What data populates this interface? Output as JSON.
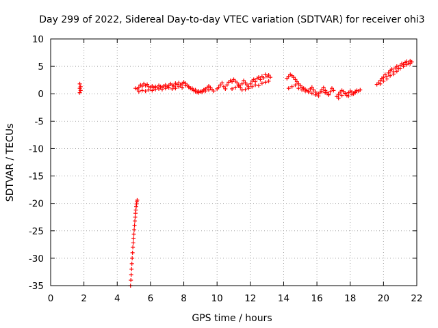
{
  "chart_data": {
    "type": "scatter",
    "title": "Day 299 of 2022, Sidereal Day-to-day VTEC variation (SDTVAR) for receiver ohi3",
    "xlabel": "GPS time / hours",
    "ylabel": "SDTVAR / TECUs",
    "xlim": [
      0,
      22
    ],
    "ylim": [
      -35,
      10
    ],
    "xticks": [
      0,
      2,
      4,
      6,
      8,
      10,
      12,
      14,
      16,
      18,
      20,
      22
    ],
    "yticks": [
      -35,
      -30,
      -25,
      -20,
      -15,
      -10,
      -5,
      0,
      5,
      10
    ],
    "grid": true,
    "marker": "plus",
    "color": "#ff0000",
    "series": [
      {
        "name": "SDTVAR",
        "x": [
          1.75,
          1.75,
          1.75,
          1.8,
          1.8,
          4.8,
          4.82,
          4.84,
          4.86,
          4.88,
          4.9,
          4.92,
          4.94,
          4.96,
          4.98,
          5.0,
          5.02,
          5.04,
          5.06,
          5.08,
          5.1,
          5.12,
          5.14,
          5.16,
          5.18,
          5.2,
          5.1,
          5.2,
          5.3,
          5.4,
          5.5,
          5.6,
          5.7,
          5.8,
          5.9,
          6.0,
          6.1,
          6.2,
          6.3,
          6.4,
          6.5,
          6.6,
          6.7,
          6.8,
          6.9,
          7.0,
          7.1,
          7.2,
          7.3,
          7.4,
          7.5,
          7.6,
          7.7,
          7.8,
          7.9,
          8.0,
          8.1,
          8.2,
          8.3,
          8.4,
          8.5,
          8.6,
          8.7,
          8.8,
          8.9,
          9.0,
          9.1,
          9.2,
          9.3,
          9.4,
          9.5,
          9.6,
          9.7,
          9.8,
          5.3,
          5.5,
          5.7,
          5.9,
          6.1,
          6.3,
          6.5,
          6.7,
          6.9,
          7.1,
          7.3,
          7.5,
          7.7,
          7.9,
          8.1,
          8.3,
          8.5,
          8.7,
          8.9,
          9.1,
          9.3,
          9.5,
          10.0,
          10.1,
          10.2,
          10.3,
          10.4,
          10.5,
          10.6,
          10.7,
          10.8,
          10.9,
          11.0,
          11.1,
          11.2,
          11.3,
          11.4,
          11.5,
          11.6,
          11.7,
          11.8,
          11.9,
          12.0,
          12.1,
          12.2,
          12.3,
          12.4,
          12.5,
          12.6,
          12.7,
          12.8,
          12.9,
          13.0,
          13.1,
          13.2,
          10.9,
          11.1,
          11.3,
          11.5,
          11.7,
          11.9,
          12.1,
          12.3,
          12.5,
          12.7,
          12.9,
          13.1,
          14.2,
          14.3,
          14.4,
          14.5,
          14.6,
          14.7,
          14.8,
          14.9,
          15.0,
          15.1,
          15.2,
          15.3,
          15.4,
          15.5,
          15.6,
          15.7,
          15.8,
          15.9,
          16.0,
          16.1,
          16.2,
          16.3,
          16.4,
          16.5,
          16.6,
          16.7,
          16.8,
          16.9,
          17.0,
          14.3,
          14.5,
          14.7,
          14.9,
          15.1,
          15.3,
          15.5,
          15.7,
          15.9,
          16.1,
          16.3,
          16.5,
          16.7,
          17.2,
          17.3,
          17.4,
          17.5,
          17.6,
          17.7,
          17.8,
          17.9,
          18.0,
          18.1,
          18.2,
          18.3,
          18.4,
          18.5,
          18.6,
          17.3,
          17.5,
          17.7,
          17.9,
          18.1,
          18.3,
          19.6,
          19.7,
          19.8,
          19.9,
          20.0,
          20.1,
          20.2,
          20.3,
          20.4,
          20.5,
          20.6,
          20.7,
          20.8,
          20.9,
          21.0,
          21.1,
          21.2,
          21.3,
          21.4,
          21.5,
          21.6,
          21.7,
          19.8,
          20.0,
          20.2,
          20.4,
          20.6,
          20.8,
          21.0,
          21.2,
          21.4,
          21.6
        ],
        "y": [
          1.8,
          1.0,
          0.2,
          1.3,
          0.6,
          -35.0,
          -34.0,
          -33.0,
          -32.0,
          -31.0,
          -30.0,
          -29.0,
          -28.0,
          -27.2,
          -26.4,
          -25.6,
          -24.8,
          -24.0,
          -23.2,
          -22.5,
          -21.8,
          -21.2,
          -20.6,
          -20.1,
          -19.7,
          -19.4,
          1.0,
          0.9,
          1.2,
          1.6,
          1.4,
          1.8,
          1.5,
          1.7,
          1.3,
          1.2,
          1.4,
          1.1,
          1.3,
          1.2,
          1.5,
          1.3,
          1.2,
          1.4,
          1.6,
          1.3,
          1.5,
          1.8,
          1.6,
          1.4,
          1.9,
          1.7,
          2.0,
          1.6,
          1.8,
          2.1,
          1.9,
          1.6,
          1.3,
          1.0,
          0.8,
          0.6,
          0.4,
          0.3,
          0.2,
          0.4,
          0.5,
          0.7,
          0.9,
          1.1,
          1.4,
          1.1,
          0.8,
          0.5,
          0.4,
          0.6,
          0.5,
          0.7,
          0.6,
          0.8,
          0.9,
          0.8,
          1.0,
          1.1,
          0.9,
          1.0,
          1.3,
          1.1,
          1.5,
          1.2,
          1.0,
          0.7,
          0.5,
          0.3,
          0.5,
          0.7,
          0.9,
          1.2,
          1.6,
          2.0,
          1.3,
          0.9,
          1.6,
          2.1,
          2.4,
          2.2,
          2.6,
          2.3,
          2.0,
          1.6,
          1.2,
          1.8,
          2.4,
          2.0,
          1.6,
          1.3,
          1.8,
          2.3,
          2.6,
          2.2,
          2.8,
          3.0,
          2.6,
          3.2,
          2.9,
          3.5,
          3.2,
          3.4,
          3.0,
          0.9,
          1.1,
          1.4,
          0.7,
          0.8,
          1.0,
          1.3,
          1.6,
          1.5,
          1.9,
          2.1,
          2.3,
          2.8,
          3.2,
          3.5,
          3.3,
          3.0,
          2.6,
          2.2,
          1.8,
          1.5,
          1.2,
          1.0,
          0.8,
          0.6,
          0.4,
          0.9,
          1.2,
          0.7,
          0.3,
          0.0,
          -0.4,
          0.3,
          0.8,
          1.1,
          0.6,
          0.2,
          -0.2,
          0.4,
          1.0,
          0.6,
          1.0,
          1.3,
          1.6,
          1.0,
          0.7,
          0.5,
          0.3,
          0.1,
          -0.2,
          0.0,
          0.4,
          0.2,
          -0.1,
          -0.5,
          -0.1,
          0.3,
          0.6,
          0.4,
          0.1,
          -0.3,
          0.2,
          0.5,
          0.3,
          0.0,
          0.4,
          0.6,
          0.5,
          0.7,
          -0.8,
          -0.3,
          0.0,
          -0.4,
          -0.1,
          0.2,
          1.7,
          2.0,
          2.4,
          2.8,
          3.0,
          3.5,
          3.2,
          3.8,
          4.2,
          4.5,
          4.0,
          4.7,
          5.0,
          4.6,
          5.2,
          5.5,
          5.3,
          5.7,
          5.9,
          5.6,
          6.0,
          5.8,
          1.8,
          2.3,
          2.7,
          3.3,
          3.6,
          4.1,
          4.6,
          5.0,
          5.3,
          5.5
        ]
      }
    ]
  }
}
